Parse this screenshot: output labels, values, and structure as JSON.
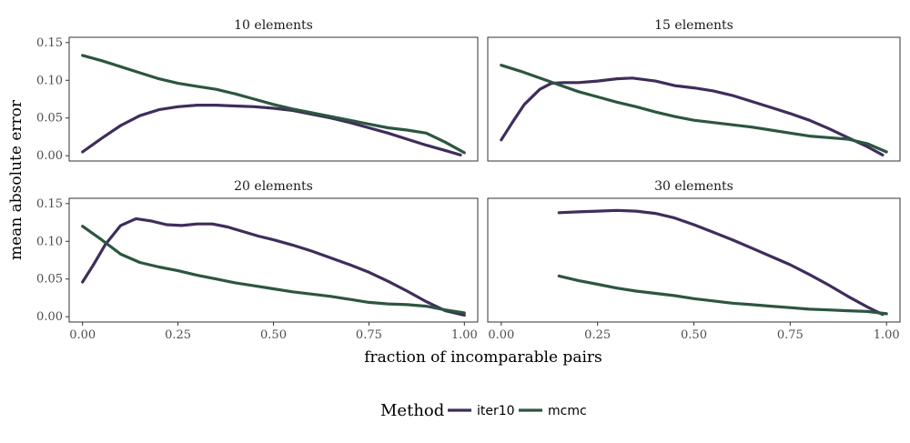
{
  "chart_data": {
    "type": "line",
    "xlabel": "fraction of incomparable pairs",
    "ylabel": "mean absolute error",
    "xlim": [
      -0.035,
      1.035
    ],
    "ylim": [
      -0.007,
      0.157
    ],
    "x_ticks": [
      "0.00",
      "0.25",
      "0.50",
      "0.75",
      "1.00"
    ],
    "x_tick_values": [
      0,
      0.25,
      0.5,
      0.75,
      1.0
    ],
    "y_ticks": [
      "0.00",
      "0.05",
      "0.10",
      "0.15"
    ],
    "y_tick_values": [
      0,
      0.05,
      0.1,
      0.15
    ],
    "grid": false,
    "legend": {
      "title": "Method",
      "position": "bottom",
      "entries": [
        {
          "name": "iter10",
          "color": "#3f2d5c"
        },
        {
          "name": "mcmc",
          "color": "#2c5640"
        }
      ]
    },
    "panels": [
      {
        "title": "10 elements",
        "series": [
          {
            "name": "iter10",
            "x": [
              0.0,
              0.05,
              0.1,
              0.15,
              0.2,
              0.25,
              0.3,
              0.35,
              0.4,
              0.45,
              0.5,
              0.55,
              0.6,
              0.65,
              0.7,
              0.75,
              0.8,
              0.85,
              0.9,
              0.95,
              0.99
            ],
            "y": [
              0.005,
              0.023,
              0.04,
              0.053,
              0.061,
              0.065,
              0.067,
              0.067,
              0.066,
              0.065,
              0.063,
              0.06,
              0.055,
              0.05,
              0.044,
              0.037,
              0.03,
              0.022,
              0.014,
              0.007,
              0.001
            ]
          },
          {
            "name": "mcmc",
            "x": [
              0.0,
              0.05,
              0.1,
              0.15,
              0.2,
              0.25,
              0.3,
              0.35,
              0.4,
              0.45,
              0.5,
              0.55,
              0.6,
              0.65,
              0.7,
              0.75,
              0.8,
              0.85,
              0.9,
              0.95,
              1.0
            ],
            "y": [
              0.133,
              0.126,
              0.118,
              0.11,
              0.102,
              0.096,
              0.092,
              0.088,
              0.082,
              0.075,
              0.068,
              0.062,
              0.057,
              0.052,
              0.047,
              0.042,
              0.037,
              0.034,
              0.03,
              0.018,
              0.004
            ]
          }
        ]
      },
      {
        "title": "15 elements",
        "series": [
          {
            "name": "iter10",
            "x": [
              0.0,
              0.03,
              0.06,
              0.1,
              0.13,
              0.16,
              0.2,
              0.25,
              0.3,
              0.34,
              0.4,
              0.45,
              0.5,
              0.55,
              0.6,
              0.65,
              0.7,
              0.75,
              0.8,
              0.85,
              0.9,
              0.95,
              0.99
            ],
            "y": [
              0.021,
              0.045,
              0.068,
              0.088,
              0.096,
              0.097,
              0.097,
              0.099,
              0.102,
              0.103,
              0.099,
              0.093,
              0.09,
              0.086,
              0.08,
              0.072,
              0.064,
              0.056,
              0.047,
              0.036,
              0.024,
              0.012,
              0.001
            ]
          },
          {
            "name": "mcmc",
            "x": [
              0.0,
              0.05,
              0.1,
              0.15,
              0.2,
              0.25,
              0.3,
              0.35,
              0.4,
              0.45,
              0.5,
              0.55,
              0.6,
              0.65,
              0.7,
              0.75,
              0.8,
              0.85,
              0.9,
              0.95,
              1.0
            ],
            "y": [
              0.12,
              0.112,
              0.103,
              0.094,
              0.085,
              0.078,
              0.071,
              0.065,
              0.058,
              0.052,
              0.047,
              0.044,
              0.041,
              0.038,
              0.034,
              0.03,
              0.026,
              0.024,
              0.022,
              0.016,
              0.005
            ]
          }
        ]
      },
      {
        "title": "20 elements",
        "series": [
          {
            "name": "iter10",
            "x": [
              0.0,
              0.03,
              0.06,
              0.1,
              0.14,
              0.18,
              0.22,
              0.26,
              0.3,
              0.34,
              0.38,
              0.42,
              0.46,
              0.5,
              0.55,
              0.6,
              0.65,
              0.7,
              0.75,
              0.8,
              0.85,
              0.9,
              0.95,
              1.0
            ],
            "y": [
              0.046,
              0.07,
              0.096,
              0.121,
              0.13,
              0.127,
              0.122,
              0.121,
              0.123,
              0.123,
              0.119,
              0.113,
              0.107,
              0.102,
              0.095,
              0.087,
              0.078,
              0.069,
              0.059,
              0.047,
              0.034,
              0.02,
              0.008,
              0.002
            ]
          },
          {
            "name": "mcmc",
            "x": [
              0.0,
              0.05,
              0.1,
              0.15,
              0.2,
              0.25,
              0.3,
              0.35,
              0.4,
              0.45,
              0.5,
              0.55,
              0.6,
              0.65,
              0.7,
              0.75,
              0.8,
              0.85,
              0.9,
              0.95,
              1.0
            ],
            "y": [
              0.12,
              0.102,
              0.083,
              0.072,
              0.066,
              0.061,
              0.055,
              0.05,
              0.045,
              0.041,
              0.037,
              0.033,
              0.03,
              0.027,
              0.023,
              0.019,
              0.017,
              0.016,
              0.014,
              0.009,
              0.005
            ]
          }
        ]
      },
      {
        "title": "30 elements",
        "series": [
          {
            "name": "iter10",
            "x": [
              0.15,
              0.2,
              0.25,
              0.3,
              0.35,
              0.4,
              0.45,
              0.5,
              0.55,
              0.6,
              0.65,
              0.7,
              0.75,
              0.8,
              0.85,
              0.9,
              0.95,
              0.99
            ],
            "y": [
              0.138,
              0.139,
              0.14,
              0.141,
              0.14,
              0.137,
              0.131,
              0.122,
              0.112,
              0.102,
              0.091,
              0.08,
              0.069,
              0.056,
              0.042,
              0.027,
              0.013,
              0.003
            ]
          },
          {
            "name": "mcmc",
            "x": [
              0.15,
              0.2,
              0.25,
              0.3,
              0.35,
              0.4,
              0.45,
              0.5,
              0.55,
              0.6,
              0.65,
              0.7,
              0.75,
              0.8,
              0.85,
              0.9,
              0.95,
              1.0
            ],
            "y": [
              0.054,
              0.048,
              0.043,
              0.038,
              0.034,
              0.031,
              0.028,
              0.024,
              0.021,
              0.018,
              0.016,
              0.014,
              0.012,
              0.01,
              0.009,
              0.008,
              0.007,
              0.004
            ]
          }
        ]
      }
    ]
  }
}
